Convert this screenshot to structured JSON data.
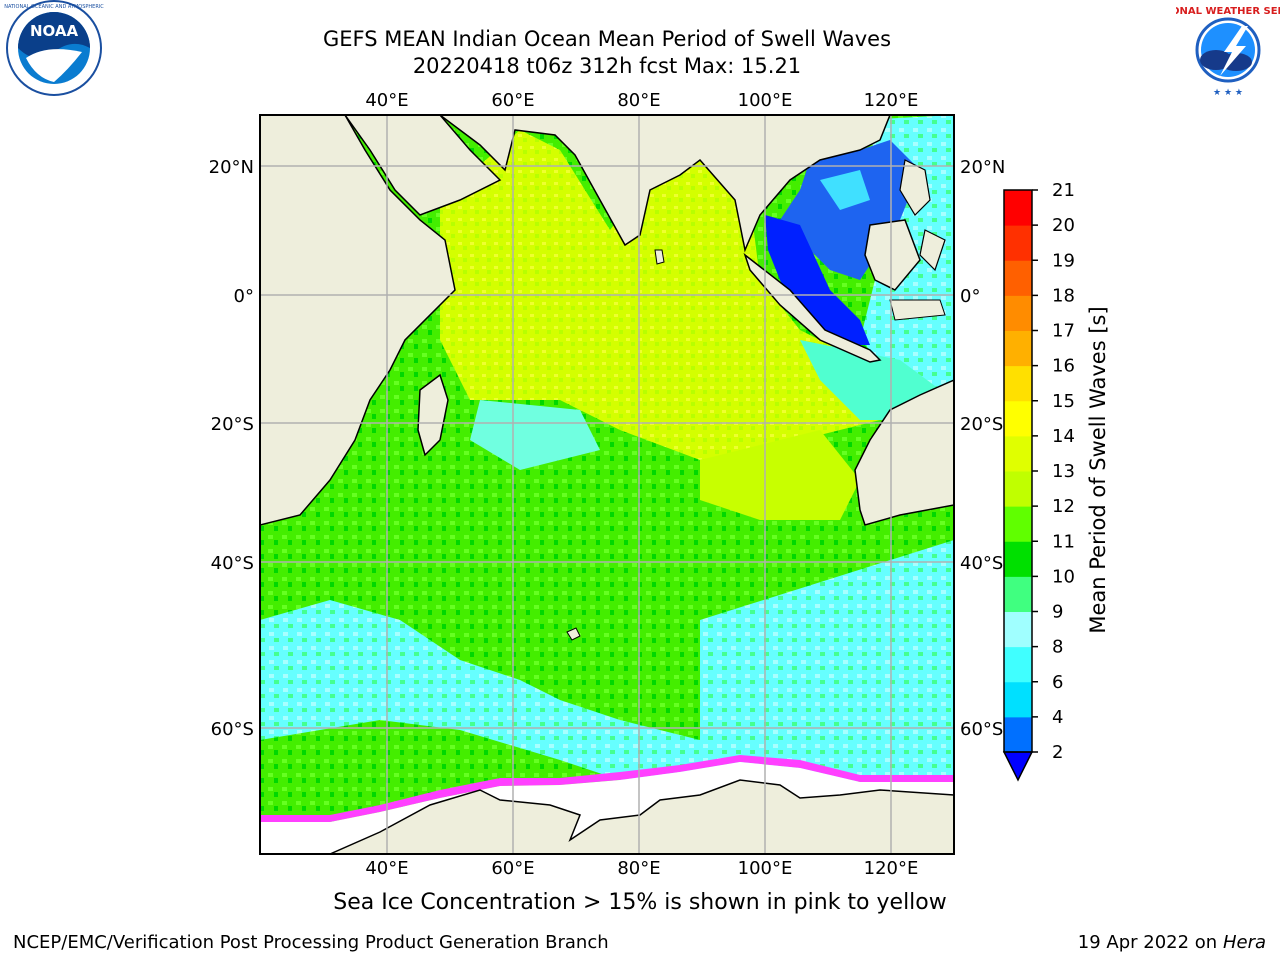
{
  "title_line1": "GEFS MEAN Indian Ocean Mean Period of Swell Waves",
  "title_line2": "20220418 t06z 312h fcst   Max: 15.21",
  "caption": "Sea Ice Concentration > 15% is shown in pink to yellow",
  "footer_left": "NCEP/EMC/Verification Post Processing Product Generation Branch",
  "footer_right_date": "19 Apr 2022 on ",
  "footer_right_host": "Hera",
  "logos": {
    "noara": "NOAA",
    "nws": "NATIONAL WEATHER SERVICE"
  },
  "map": {
    "lon_labels": [
      "40°E",
      "60°E",
      "80°E",
      "100°E",
      "120°E"
    ],
    "lat_labels_left": [
      "20°N",
      "0°",
      "20°S",
      "40°S",
      "60°S"
    ],
    "lat_labels_right": [
      "20°N",
      "0°",
      "20°S",
      "40°S",
      "60°S"
    ],
    "land_color": "#eeeedc"
  },
  "colorbar": {
    "label": "Mean Period of Swell Waves [s]",
    "ticks": [
      "2",
      "4",
      "6",
      "8",
      "9",
      "10",
      "11",
      "12",
      "13",
      "14",
      "15",
      "16",
      "17",
      "18",
      "19",
      "20",
      "21"
    ],
    "colors": [
      "#0070ff",
      "#00e0ff",
      "#40ffff",
      "#a0ffff",
      "#40ff80",
      "#00e000",
      "#60ff00",
      "#c0ff00",
      "#e0ff00",
      "#ffff00",
      "#ffe000",
      "#ffb000",
      "#ff8c00",
      "#ff6000",
      "#ff3000",
      "#ff0000"
    ],
    "under_color": "#0000ff"
  }
}
